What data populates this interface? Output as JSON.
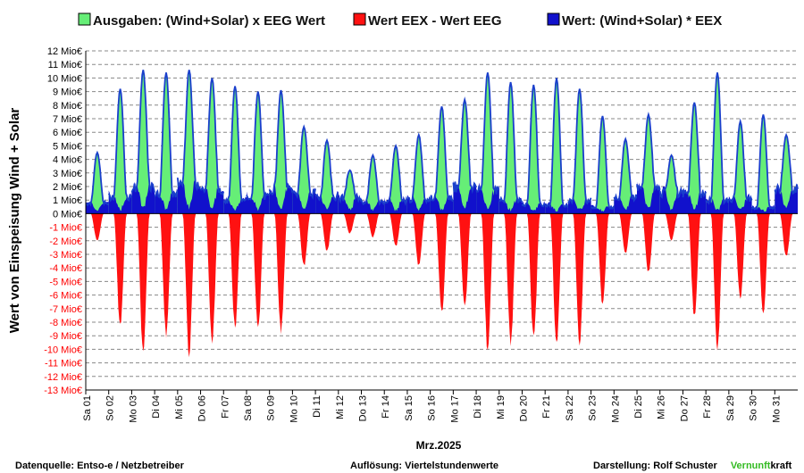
{
  "chart_data": {
    "type": "area",
    "ylabel": "Wert von Einspeisung Wind + Solar",
    "xlabel": "Mrz.2025",
    "ylim": [
      -13,
      12
    ],
    "y_ticks": [
      "12 Mio€",
      "11 Mio€",
      "10 Mio€",
      "9 Mio€",
      "8 Mio€",
      "7 Mio€",
      "6 Mio€",
      "5 Mio€",
      "4 Mio€",
      "3 Mio€",
      "2 Mio€",
      "1 Mio€",
      "0 Mio€",
      "-1 Mio€",
      "-2 Mio€",
      "-3 Mio€",
      "-4 Mio€",
      "-5 Mio€",
      "-6 Mio€",
      "-7 Mio€",
      "-8 Mio€",
      "-9 Mio€",
      "-10 Mio€",
      "-11 Mio€",
      "-12 Mio€",
      "-13 Mio€"
    ],
    "categories": [
      "Sa 01",
      "So 02",
      "Mo 03",
      "Di 04",
      "Mi 05",
      "Do 06",
      "Fr 07",
      "Sa 08",
      "So 09",
      "Mo 10",
      "Di 11",
      "Mi 12",
      "Do 13",
      "Fr 14",
      "Sa 15",
      "So 16",
      "Mo 17",
      "Di 18",
      "Mi 19",
      "Do 20",
      "Fr 21",
      "Sa 22",
      "So 23",
      "Mo 24",
      "Di 25",
      "Mi 26",
      "Do 27",
      "Fr 28",
      "Sa 29",
      "So 30",
      "Mo 31"
    ],
    "grid": true,
    "legend_position": "top",
    "series": [
      {
        "name": "Ausgaben: (Wind+Solar) x EEG Wert",
        "color": "#66ee77",
        "values": [
          4.5,
          9.2,
          10.6,
          10.4,
          10.6,
          10.0,
          9.4,
          9.0,
          9.1,
          6.4,
          5.4,
          3.2,
          4.3,
          5.0,
          5.8,
          7.9,
          8.4,
          10.4,
          9.7,
          9.5,
          10.0,
          9.2,
          7.2,
          5.5,
          7.3,
          4.3,
          8.2,
          10.4,
          6.8,
          7.3,
          5.8
        ]
      },
      {
        "name": "Wert EEX - Wert EEG",
        "color": "#ff1111",
        "values": [
          -2.1,
          -8.7,
          -10.5,
          -9.2,
          -10.7,
          -9.9,
          -8.7,
          -8.9,
          -9.0,
          -4.0,
          -2.9,
          -1.5,
          -1.8,
          -2.5,
          -4.0,
          -7.7,
          -7.1,
          -10.4,
          -9.8,
          -9.6,
          -10.0,
          -9.8,
          -6.9,
          -3.0,
          -4.5,
          -2.0,
          -7.8,
          -10.3,
          -6.5,
          -7.8,
          -3.3
        ]
      },
      {
        "name": "Wert: (Wind+Solar) * EEX",
        "color": "#1111cc",
        "values": [
          0.8,
          1.3,
          2.0,
          1.5,
          2.4,
          1.9,
          1.0,
          1.3,
          1.9,
          1.6,
          1.3,
          1.2,
          0.9,
          1.0,
          1.1,
          1.2,
          2.1,
          1.8,
          1.0,
          0.7,
          0.6,
          1.0,
          0.5,
          1.3,
          1.9,
          1.6,
          1.5,
          1.0,
          1.1,
          0.4,
          1.9
        ]
      }
    ]
  },
  "footer": {
    "source": "Datenquelle:  Entso-e  / Netzbetreiber",
    "resolution": "Auflösung: Viertelstundenwerte",
    "author_prefix": "Darstellung:  Rolf Schuster",
    "brand_green": "Vernunft",
    "brand_black": "kraft"
  },
  "colors": {
    "grid": "#888888",
    "axis": "#000000",
    "brand_green": "#33bb22"
  }
}
